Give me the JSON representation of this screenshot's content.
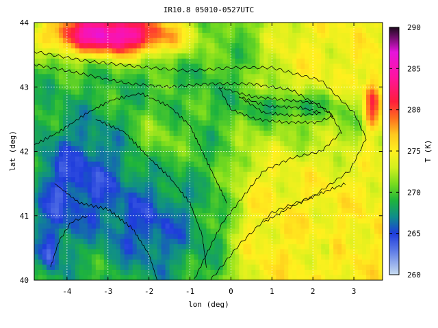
{
  "chart_data": {
    "type": "heatmap",
    "title": "IR10.8 05010-0527UTC",
    "xlabel": "lon (deg)",
    "ylabel": "lat (deg)",
    "colorbar_label": "T (K)",
    "xlim": [
      -4.8,
      3.7
    ],
    "ylim": [
      40,
      44
    ],
    "x_ticks": [
      -4,
      -3,
      -2,
      -1,
      0,
      1,
      2,
      3
    ],
    "y_ticks": [
      40,
      41,
      42,
      43,
      44
    ],
    "colorbar_range": [
      260,
      290
    ],
    "colorbar_ticks": [
      260,
      265,
      270,
      275,
      280,
      285,
      290
    ],
    "colorscale": [
      {
        "value": 260,
        "color": "#c8dcf0"
      },
      {
        "value": 263,
        "color": "#5a78e6"
      },
      {
        "value": 265,
        "color": "#1e3cdc"
      },
      {
        "value": 267,
        "color": "#0f8c8c"
      },
      {
        "value": 269,
        "color": "#1eb43c"
      },
      {
        "value": 271,
        "color": "#78dc1e"
      },
      {
        "value": 273,
        "color": "#d2f01e"
      },
      {
        "value": 275,
        "color": "#fff01e"
      },
      {
        "value": 277,
        "color": "#ffc81e"
      },
      {
        "value": 279,
        "color": "#ff6e1e"
      },
      {
        "value": 281,
        "color": "#ff1e3c"
      },
      {
        "value": 284,
        "color": "#ff14a0"
      },
      {
        "value": 287,
        "color": "#e614dc"
      },
      {
        "value": 290,
        "color": "#1e0a1e"
      }
    ],
    "grid": "dashed",
    "overlay": "black terrain contour lines"
  }
}
